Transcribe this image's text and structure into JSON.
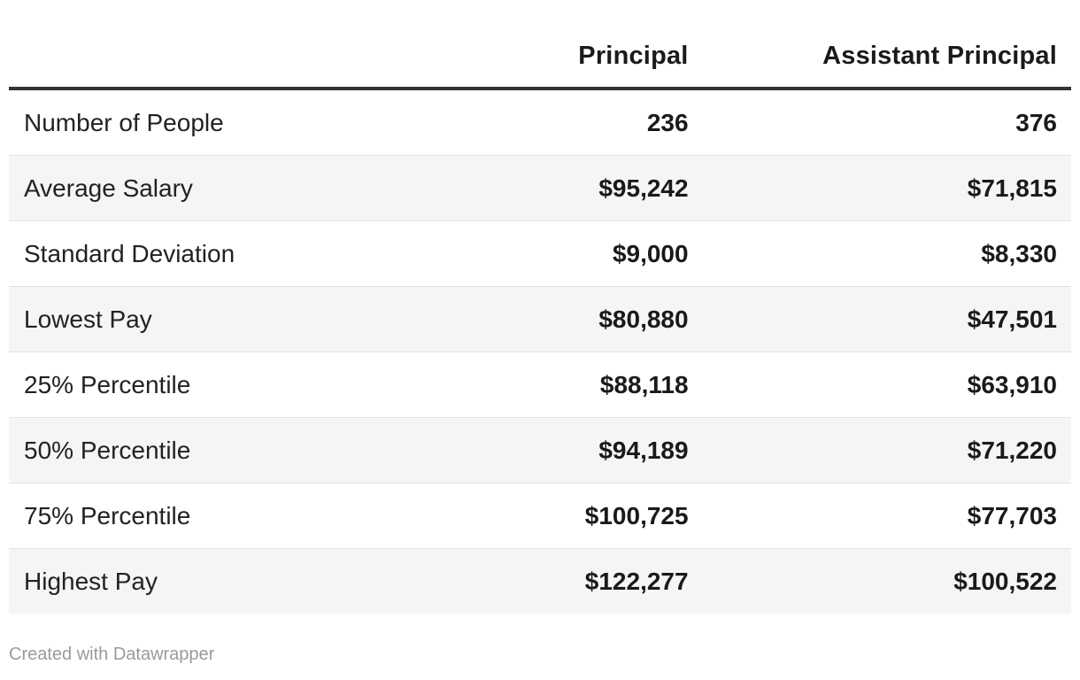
{
  "table": {
    "columns": [
      {
        "label": ""
      },
      {
        "label": "Principal"
      },
      {
        "label": "Assistant Principal"
      }
    ],
    "rows": [
      {
        "label": "Number of People",
        "principal": "236",
        "assistant": "376"
      },
      {
        "label": "Average Salary",
        "principal": "$95,242",
        "assistant": "$71,815"
      },
      {
        "label": "Standard Deviation",
        "principal": "$9,000",
        "assistant": "$8,330"
      },
      {
        "label": "Lowest Pay",
        "principal": "$80,880",
        "assistant": "$47,501"
      },
      {
        "label": "25% Percentile",
        "principal": "$88,118",
        "assistant": "$63,910"
      },
      {
        "label": "50% Percentile",
        "principal": "$94,189",
        "assistant": "$71,220"
      },
      {
        "label": "75% Percentile",
        "principal": "$100,725",
        "assistant": "$77,703"
      },
      {
        "label": "Highest Pay",
        "principal": "$122,277",
        "assistant": "$100,522"
      }
    ]
  },
  "footer": {
    "credit": "Created with Datawrapper"
  },
  "colors": {
    "header_border": "#333333",
    "row_border": "#e3e3e3",
    "stripe": "#f5f5f5",
    "text_strong": "#1a1a1a",
    "text_label": "#222222",
    "credit": "#9a9a9a"
  },
  "chart_data": {
    "type": "table",
    "title": "",
    "columns": [
      "",
      "Principal",
      "Assistant Principal"
    ],
    "row_labels": [
      "Number of People",
      "Average Salary",
      "Standard Deviation",
      "Lowest Pay",
      "25% Percentile",
      "50% Percentile",
      "75% Percentile",
      "Highest Pay"
    ],
    "series": [
      {
        "name": "Principal",
        "values": [
          236,
          95242,
          9000,
          80880,
          88118,
          94189,
          100725,
          122277
        ]
      },
      {
        "name": "Assistant Principal",
        "values": [
          376,
          71815,
          8330,
          47501,
          63910,
          71220,
          77703,
          100522
        ]
      }
    ],
    "value_format": "currency-USD (except Number of People, plain count)",
    "layout": {
      "striped_rows": true,
      "value_alignment": "right",
      "header_rule": true
    }
  }
}
